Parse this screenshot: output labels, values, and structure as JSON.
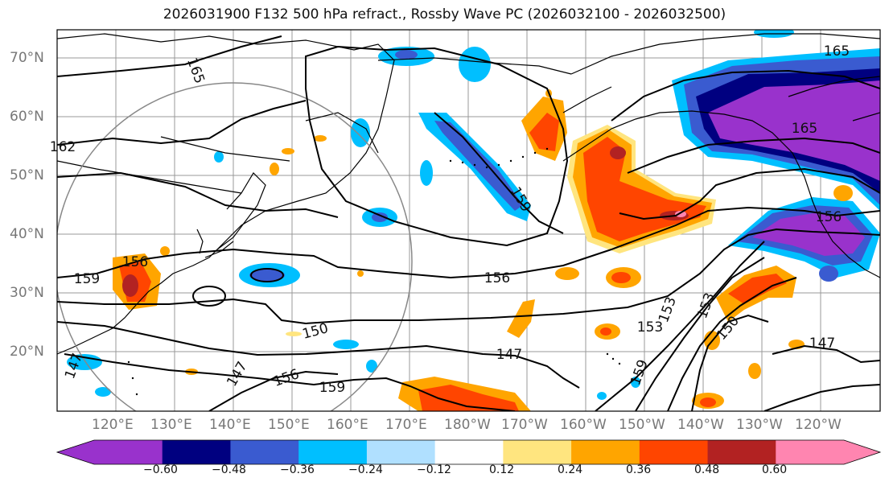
{
  "title": "2026031900 F132 500 hPa refract., Rossby Wave PC (2026032100 - 2026032500)",
  "lat_labels": [
    "70°N",
    "60°N",
    "50°N",
    "40°N",
    "30°N",
    "20°N"
  ],
  "lon_labels": [
    "120°E",
    "130°E",
    "140°E",
    "150°E",
    "160°E",
    "170°E",
    "180°W",
    "170°W",
    "160°W",
    "150°W",
    "140°W",
    "130°W",
    "120°W"
  ],
  "contour_labels": [
    "165",
    "165",
    "162",
    "159",
    "159",
    "156",
    "156",
    "156",
    "156",
    "153",
    "153",
    "153",
    "150",
    "150",
    "147",
    "147",
    "147",
    "147",
    "159",
    "159",
    "165"
  ],
  "colorbar": {
    "ticks": [
      "−0.60",
      "−0.48",
      "−0.36",
      "−0.24",
      "−0.12",
      "0.12",
      "0.24",
      "0.36",
      "0.48",
      "0.60"
    ],
    "colors": [
      "#9932cc",
      "#000080",
      "#3a5bd0",
      "#00bfff",
      "#b0e0ff",
      "#ffffff",
      "#ffe57f",
      "#ffa500",
      "#ff4500",
      "#b22222",
      "#ff85b0"
    ]
  }
}
